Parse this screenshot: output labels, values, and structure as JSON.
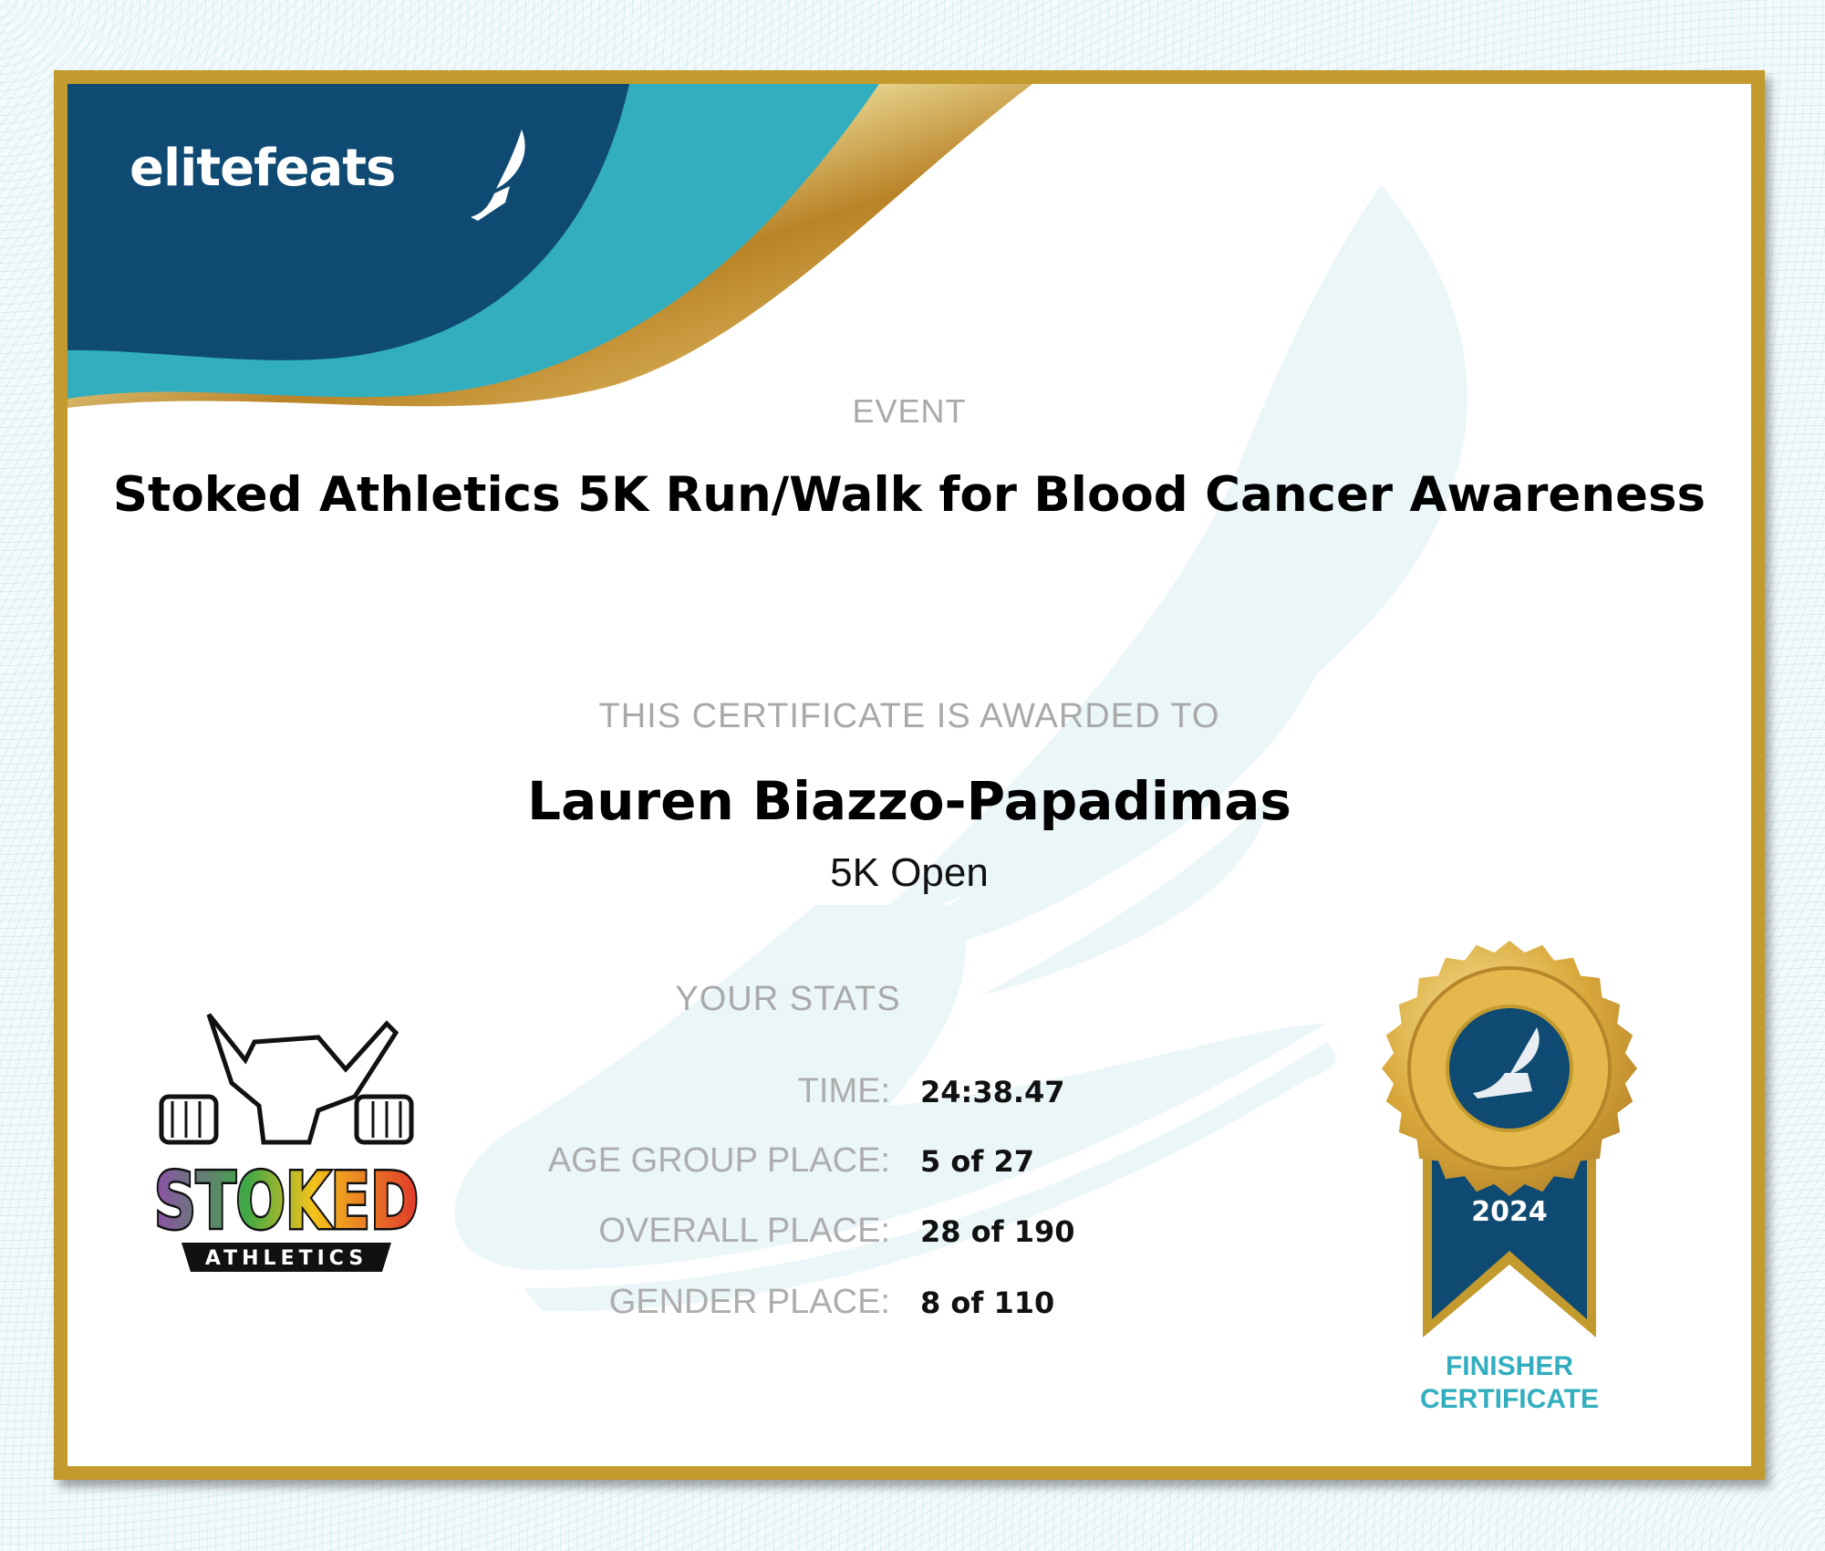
{
  "brand": {
    "logo_text": "elitefeats",
    "colors": {
      "navy": "#0f4a73",
      "teal": "#32aebf",
      "gold": "#c39a2e"
    }
  },
  "certificate": {
    "event_label": "EVENT",
    "event_name": "Stoked Athletics 5K Run/Walk for Blood Cancer Awareness",
    "awarded_label": "THIS CERTIFICATE IS AWARDED TO",
    "recipient": "Lauren Biazzo-Papadimas",
    "division": "5K Open",
    "stats_label": "YOUR STATS",
    "stats": [
      {
        "label": "TIME:",
        "value": "24:38.47"
      },
      {
        "label": "AGE GROUP PLACE:",
        "value": "5 of 27"
      },
      {
        "label": "OVERALL PLACE:",
        "value": "28 of 190"
      },
      {
        "label": "GENDER PLACE:",
        "value": "8 of 110"
      }
    ]
  },
  "sponsor_logo": {
    "main": "STOKED",
    "sub": "ATHLETICS"
  },
  "badge": {
    "year": "2024",
    "line1": "FINISHER",
    "line2": "CERTIFICATE",
    "icon": "winged-foot-icon"
  }
}
